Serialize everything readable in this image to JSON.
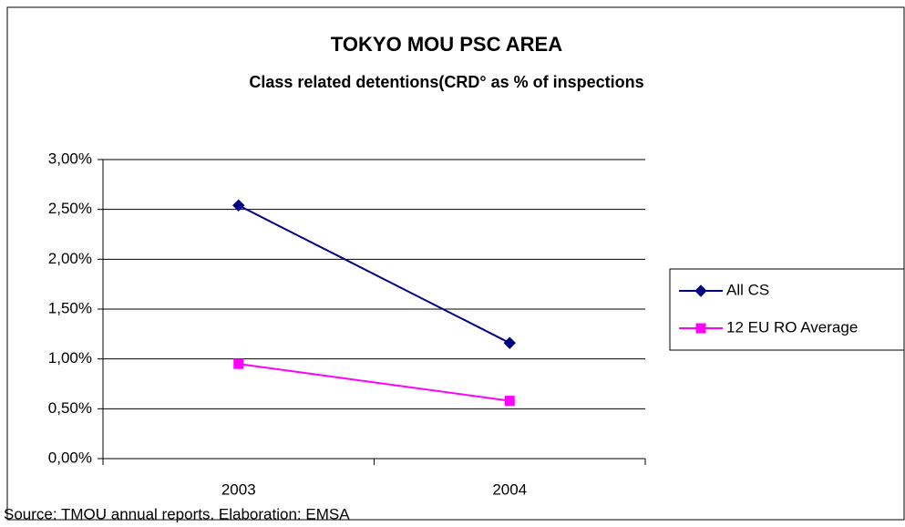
{
  "chart_data": {
    "type": "line",
    "title": "TOKYO MOU PSC AREA",
    "subtitle": "Class related detentions(CRD° as % of inspections",
    "source": "Source: TMOU annual reports.    Elaboration: EMSA",
    "categories": [
      "2003",
      "2004"
    ],
    "series": [
      {
        "name": "All CS",
        "color": "#000080",
        "marker": "diamond",
        "values": [
          2.54,
          1.16
        ]
      },
      {
        "name": "12 EU RO Average",
        "color": "#ff00ff",
        "marker": "square",
        "values": [
          0.95,
          0.58
        ]
      }
    ],
    "ylim": [
      0,
      3
    ],
    "yticks": [
      {
        "value": 0,
        "label": "0,00%"
      },
      {
        "value": 0.5,
        "label": "0,50%"
      },
      {
        "value": 1,
        "label": "1,00%"
      },
      {
        "value": 1.5,
        "label": "1,50%"
      },
      {
        "value": 2,
        "label": "2,00%"
      },
      {
        "value": 2.5,
        "label": "2,50%"
      },
      {
        "value": 3,
        "label": "3,00%"
      }
    ],
    "grid": true,
    "legend": "right"
  }
}
